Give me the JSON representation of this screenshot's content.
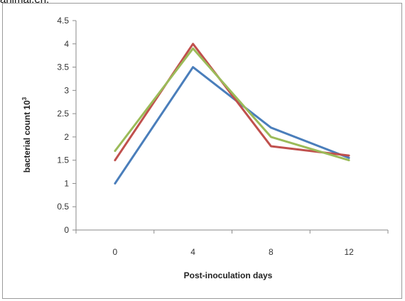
{
  "caption_fragment": "animal.en.",
  "chart_data": {
    "type": "line",
    "title": "",
    "xlabel": "Post-inoculation days",
    "ylabel": "bacterial count 10",
    "ylabel_superscript": "3",
    "categories": [
      "0",
      "4",
      "8",
      "12"
    ],
    "ylim": [
      0,
      4.5
    ],
    "yticks": [
      "0",
      "0.5",
      "1",
      "1.5",
      "2",
      "2.5",
      "3",
      "3.5",
      "4",
      "4.5"
    ],
    "grid": false,
    "legend": "none",
    "series": [
      {
        "color": "#4a7ebb",
        "values": [
          1.0,
          3.5,
          2.2,
          1.55
        ]
      },
      {
        "color": "#c0504d",
        "values": [
          1.5,
          4.0,
          1.8,
          1.6
        ]
      },
      {
        "color": "#9bbb59",
        "values": [
          1.7,
          3.9,
          2.0,
          1.5
        ]
      }
    ]
  }
}
